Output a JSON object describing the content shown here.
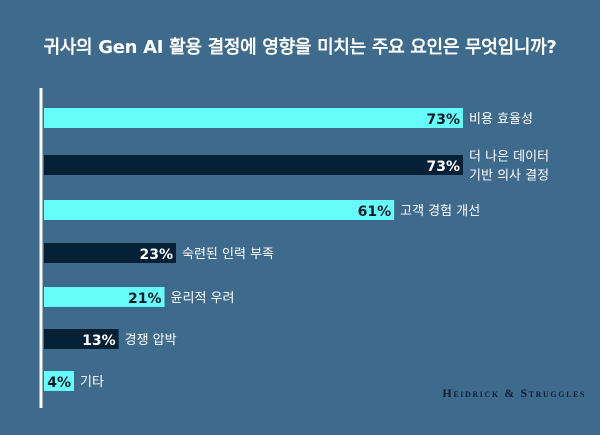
{
  "title": "귀사의 Gen AI 활용 결정에 영향을 미치는 주요 요인은 무엇입니까?",
  "logo_text": "Heidrick & Struggles",
  "colors": {
    "background": "#3e6a8c",
    "bar_light": "#66fcf8",
    "bar_dark": "#062036",
    "axis": "#ffffff"
  },
  "chart_data": {
    "type": "bar",
    "orientation": "horizontal",
    "categories": [
      [
        "비용 효율성"
      ],
      [
        "더 나은 데이터",
        "기반 의사 결정"
      ],
      [
        "고객 경험 개선"
      ],
      [
        "숙련된 인력 부족"
      ],
      [
        "윤리적 우려"
      ],
      [
        "경쟁 압박"
      ],
      [
        "기타"
      ]
    ],
    "values": [
      73,
      73,
      61,
      23,
      21,
      13,
      4
    ],
    "data_labels": [
      "73%",
      "73%",
      "61%",
      "23%",
      "21%",
      "13%",
      "4%"
    ],
    "bar_colors": [
      "#66fcf8",
      "#062036",
      "#66fcf8",
      "#062036",
      "#66fcf8",
      "#062036",
      "#66fcf8"
    ],
    "unit": "%",
    "grid": false
  }
}
